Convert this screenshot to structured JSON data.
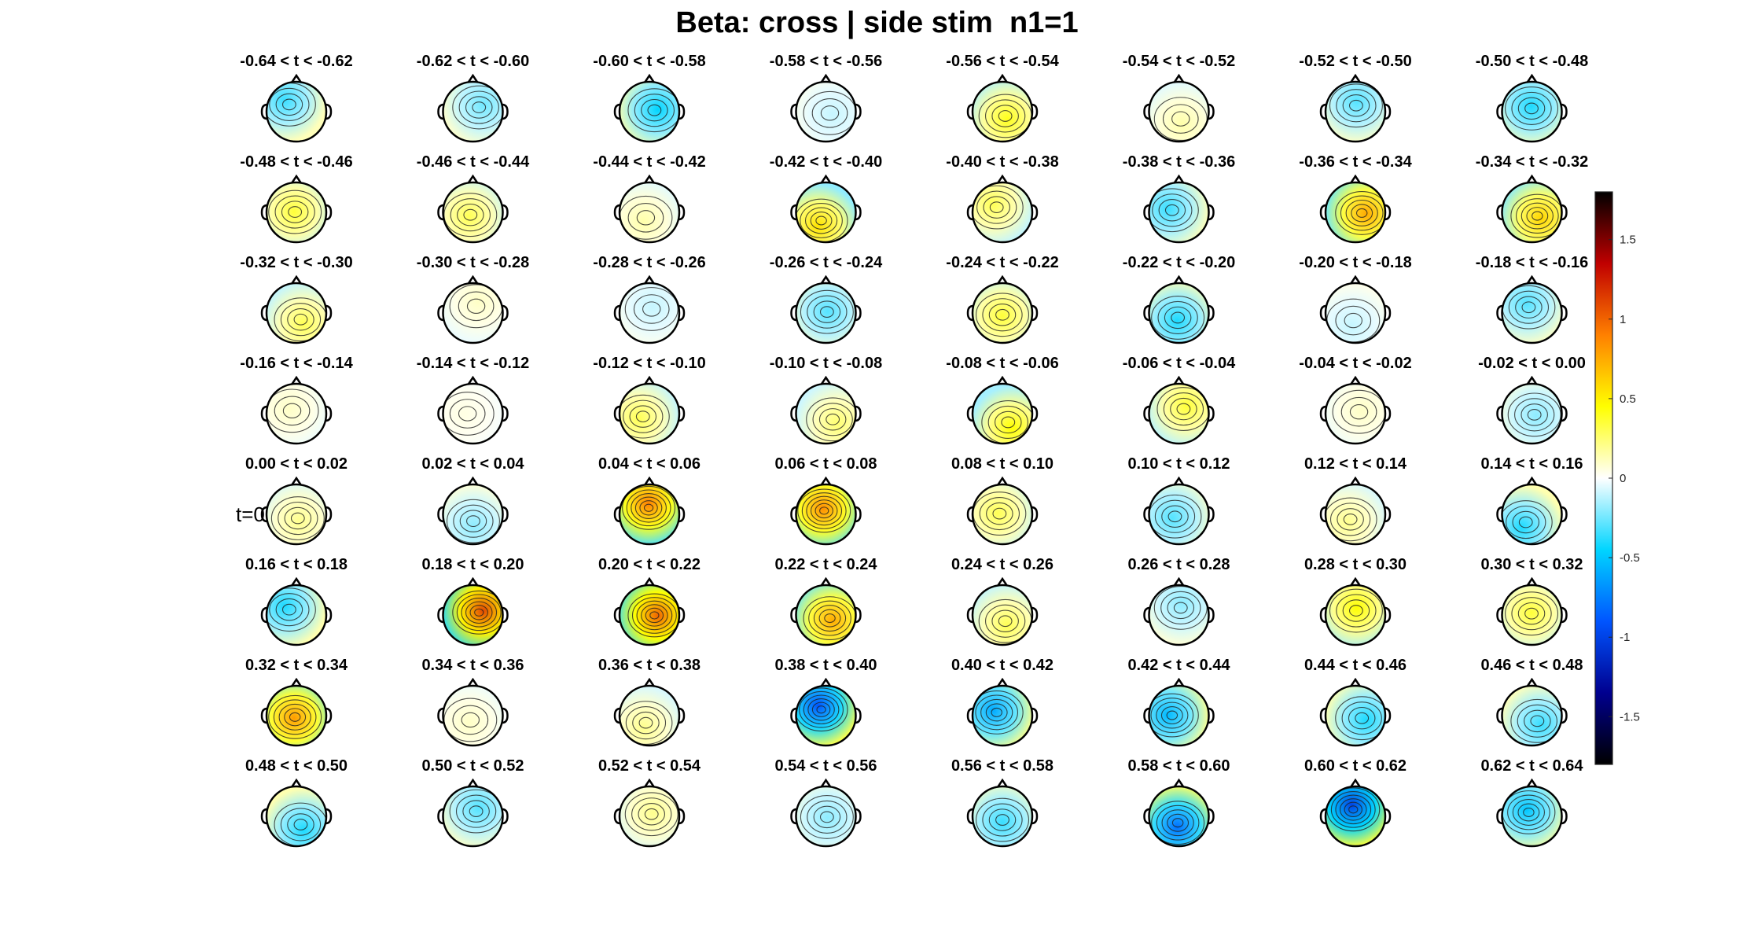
{
  "title": "Beta: cross | side stim  n1=1",
  "chart_data": {
    "type": "heatmap",
    "title": "Beta: cross | side stim  n1=1",
    "grid": {
      "rows": 8,
      "cols": 8
    },
    "panel_labels": [
      "-0.64 < t < -0.62",
      "-0.62 < t < -0.60",
      "-0.60 < t < -0.58",
      "-0.58 < t < -0.56",
      "-0.56 < t < -0.54",
      "-0.54 < t < -0.52",
      "-0.52 < t < -0.50",
      "-0.50 < t < -0.48",
      "-0.48 < t < -0.46",
      "-0.46 < t < -0.44",
      "-0.44 < t < -0.42",
      "-0.42 < t < -0.40",
      "-0.40 < t < -0.38",
      "-0.38 < t < -0.36",
      "-0.36 < t < -0.34",
      "-0.34 < t < -0.32",
      "-0.32 < t < -0.30",
      "-0.30 < t < -0.28",
      "-0.28 < t < -0.26",
      "-0.26 < t < -0.24",
      "-0.24 < t < -0.22",
      "-0.22 < t < -0.20",
      "-0.20 < t < -0.18",
      "-0.18 < t < -0.16",
      "-0.16 < t < -0.14",
      "-0.14 < t < -0.12",
      "-0.12 < t < -0.10",
      "-0.10 < t < -0.08",
      "-0.08 < t < -0.06",
      "-0.06 < t < -0.04",
      "-0.04 < t < -0.02",
      "-0.02 < t < 0.00",
      "0.00 < t < 0.02",
      "0.02 < t < 0.04",
      "0.04 < t < 0.06",
      "0.06 < t < 0.08",
      "0.08 < t < 0.10",
      "0.10 < t < 0.12",
      "0.12 < t < 0.14",
      "0.14 < t < 0.16",
      "0.16 < t < 0.18",
      "0.18 < t < 0.20",
      "0.20 < t < 0.22",
      "0.22 < t < 0.24",
      "0.24 < t < 0.26",
      "0.26 < t < 0.28",
      "0.28 < t < 0.30",
      "0.30 < t < 0.32",
      "0.32 < t < 0.34",
      "0.34 < t < 0.36",
      "0.36 < t < 0.38",
      "0.38 < t < 0.40",
      "0.40 < t < 0.42",
      "0.42 < t < 0.44",
      "0.44 < t < 0.46",
      "0.46 < t < 0.48",
      "0.48 < t < 0.50",
      "0.50 < t < 0.52",
      "0.52 < t < 0.54",
      "0.54 < t < 0.56",
      "0.56 < t < 0.58",
      "0.58 < t < 0.60",
      "0.60 < t < 0.62",
      "0.62 < t < 0.64"
    ],
    "panel_values": [
      -0.35,
      -0.25,
      -0.45,
      -0.1,
      0.4,
      0.15,
      -0.3,
      -0.4,
      0.35,
      0.3,
      0.15,
      0.55,
      0.3,
      -0.35,
      0.75,
      0.6,
      0.3,
      0.1,
      -0.1,
      -0.3,
      0.35,
      -0.4,
      -0.1,
      -0.3,
      0.1,
      0.05,
      0.3,
      0.25,
      0.45,
      0.35,
      0.1,
      -0.2,
      0.2,
      -0.2,
      0.9,
      0.85,
      0.3,
      -0.3,
      0.2,
      -0.4,
      -0.4,
      1.1,
      1.0,
      0.75,
      0.3,
      -0.2,
      0.45,
      0.35,
      0.8,
      0.1,
      0.2,
      -0.9,
      -0.6,
      -0.55,
      -0.4,
      -0.35,
      -0.4,
      -0.3,
      0.2,
      -0.2,
      -0.35,
      -0.8,
      -1.0,
      -0.5
    ],
    "annotation": "t=0",
    "colorbar": {
      "ticks": [
        1.5,
        1,
        0.5,
        0,
        -0.5,
        -1,
        -1.5
      ],
      "tick_labels": [
        "1.5",
        "1",
        "0.5",
        "0",
        "-0.5",
        "-1",
        "-1.5"
      ],
      "range": [
        -1.8,
        1.8
      ],
      "colormap": [
        "#000000",
        "#00008f",
        "#0055ff",
        "#00d5ff",
        "#ffffff",
        "#ffff00",
        "#ff8000",
        "#c00000",
        "#000000"
      ]
    }
  }
}
